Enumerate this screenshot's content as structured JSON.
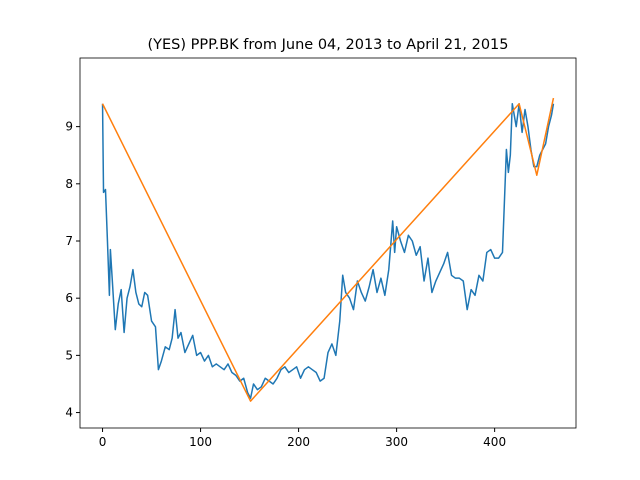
{
  "chart_data": {
    "type": "line",
    "title": "(YES) PPP.BK from June 04, 2013 to April 21, 2015",
    "series": [
      {
        "color": "#1f77b4",
        "x": [
          0,
          1,
          3,
          5,
          7,
          8,
          10,
          13,
          16,
          19,
          22,
          25,
          28,
          31,
          34,
          37,
          40,
          43,
          46,
          50,
          54,
          57,
          60,
          64,
          68,
          71,
          74,
          77,
          80,
          84,
          88,
          92,
          96,
          100,
          104,
          108,
          112,
          116,
          120,
          124,
          128,
          132,
          136,
          140,
          144,
          148,
          151,
          154,
          158,
          162,
          166,
          170,
          174,
          178,
          182,
          186,
          190,
          194,
          198,
          202,
          206,
          210,
          214,
          218,
          222,
          226,
          230,
          234,
          238,
          242,
          245,
          248,
          252,
          256,
          260,
          264,
          268,
          272,
          276,
          280,
          284,
          288,
          292,
          296,
          298,
          300,
          304,
          308,
          312,
          316,
          320,
          324,
          328,
          332,
          336,
          340,
          344,
          348,
          352,
          356,
          360,
          364,
          368,
          372,
          376,
          380,
          384,
          388,
          392,
          396,
          400,
          404,
          408,
          412,
          414,
          416,
          418,
          420,
          422,
          425,
          428,
          431,
          434,
          437,
          440,
          443,
          446,
          449,
          452,
          455,
          458,
          460
        ],
        "values": [
          9.4,
          7.85,
          7.9,
          7.0,
          6.05,
          6.85,
          6.3,
          5.45,
          5.9,
          6.15,
          5.4,
          6.0,
          6.2,
          6.5,
          6.1,
          5.9,
          5.85,
          6.1,
          6.05,
          5.6,
          5.5,
          4.75,
          4.9,
          5.15,
          5.1,
          5.3,
          5.8,
          5.3,
          5.4,
          5.05,
          5.2,
          5.35,
          5.0,
          5.05,
          4.9,
          5.0,
          4.8,
          4.85,
          4.8,
          4.75,
          4.85,
          4.7,
          4.65,
          4.55,
          4.6,
          4.35,
          4.25,
          4.5,
          4.4,
          4.45,
          4.6,
          4.55,
          4.5,
          4.6,
          4.75,
          4.8,
          4.7,
          4.75,
          4.8,
          4.6,
          4.75,
          4.8,
          4.75,
          4.7,
          4.55,
          4.6,
          5.05,
          5.2,
          5.0,
          5.6,
          6.4,
          6.1,
          6.0,
          5.8,
          6.3,
          6.1,
          5.95,
          6.2,
          6.5,
          6.1,
          6.35,
          6.05,
          6.5,
          7.35,
          6.8,
          7.25,
          7.0,
          6.8,
          7.1,
          7.0,
          6.75,
          6.9,
          6.3,
          6.7,
          6.1,
          6.3,
          6.45,
          6.6,
          6.8,
          6.4,
          6.35,
          6.35,
          6.3,
          5.8,
          6.15,
          6.05,
          6.4,
          6.3,
          6.8,
          6.85,
          6.7,
          6.7,
          6.8,
          8.6,
          8.2,
          8.5,
          9.4,
          9.2,
          9.0,
          9.4,
          8.9,
          9.3,
          9.0,
          8.6,
          8.3,
          8.3,
          8.5,
          8.6,
          8.7,
          9.0,
          9.2,
          9.4
        ]
      },
      {
        "color": "#ff7f0e",
        "x": [
          0,
          151,
          425,
          443,
          460
        ],
        "values": [
          9.4,
          4.2,
          9.4,
          8.15,
          9.5
        ]
      }
    ],
    "xlim": [
      -23,
      483
    ],
    "ylim": [
      3.73,
      10.2
    ],
    "xticks": [
      0,
      100,
      200,
      300,
      400
    ],
    "yticks": [
      4,
      5,
      6,
      7,
      8,
      9
    ]
  }
}
